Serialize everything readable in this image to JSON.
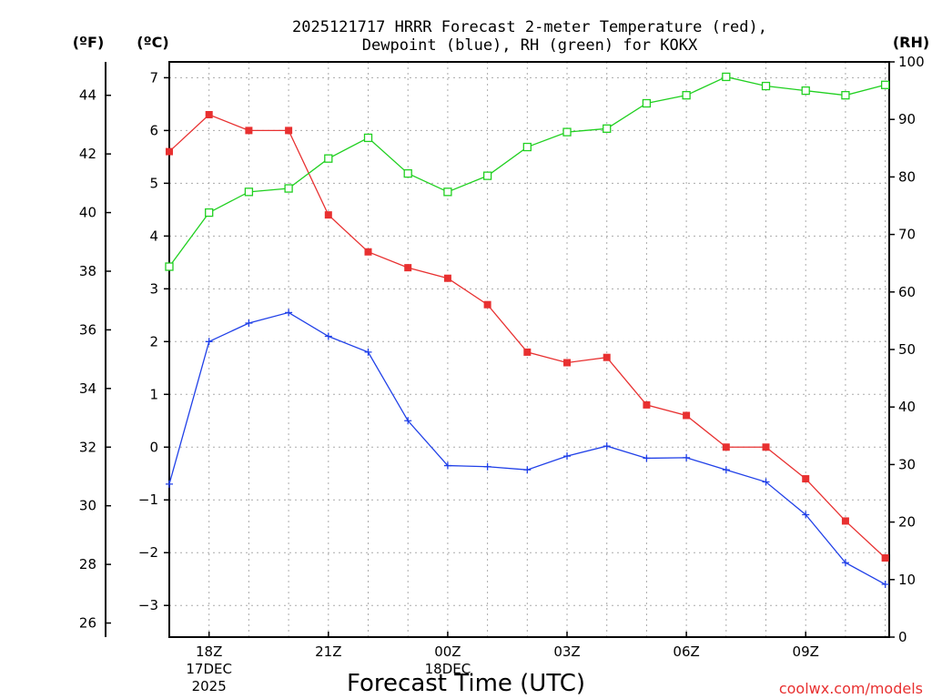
{
  "chart_data": {
    "type": "line",
    "title_line1": "2025121717 HRRR Forecast 2-meter Temperature (red),",
    "title_line2": "Dewpoint (blue), RH (green) for KOKX",
    "xlabel": "Forecast Time (UTC)",
    "watermark": "coolwx.com/models",
    "axis_units": {
      "fahrenheit": "(ºF)",
      "celsius": "(ºC)",
      "rh": "(RH)"
    },
    "x_hours": [
      17,
      18,
      19,
      20,
      21,
      22,
      23,
      24,
      25,
      26,
      27,
      28,
      29,
      30,
      31,
      32,
      33,
      34,
      35
    ],
    "xlim": [
      17,
      35.1
    ],
    "x_ticks": [
      {
        "hour": 18,
        "lines": [
          "18Z",
          "17DEC",
          "2025"
        ]
      },
      {
        "hour": 21,
        "lines": [
          "21Z"
        ]
      },
      {
        "hour": 24,
        "lines": [
          "00Z",
          "18DEC"
        ]
      },
      {
        "hour": 27,
        "lines": [
          "03Z"
        ]
      },
      {
        "hour": 30,
        "lines": [
          "06Z"
        ]
      },
      {
        "hour": 33,
        "lines": [
          "09Z"
        ]
      }
    ],
    "celsius_axis": {
      "ylim": [
        -3.6,
        7.3
      ],
      "ticks": [
        -3,
        -2,
        -1,
        0,
        1,
        2,
        3,
        4,
        5,
        6,
        7
      ],
      "tick_labels": [
        "−3",
        "−2",
        "−1",
        "0",
        "1",
        "2",
        "3",
        "4",
        "5",
        "6",
        "7"
      ]
    },
    "fahrenheit_axis": {
      "ticks": [
        26,
        28,
        30,
        32,
        34,
        36,
        38,
        40,
        42,
        44
      ],
      "tick_labels": [
        "26",
        "28",
        "30",
        "32",
        "34",
        "36",
        "38",
        "40",
        "42",
        "44"
      ]
    },
    "rh_axis": {
      "ylim": [
        0,
        100
      ],
      "ticks": [
        0,
        10,
        20,
        30,
        40,
        50,
        60,
        70,
        80,
        90,
        100
      ],
      "tick_labels": [
        "0",
        "10",
        "20",
        "30",
        "40",
        "50",
        "60",
        "70",
        "80",
        "90",
        "100"
      ]
    },
    "series": [
      {
        "name": "2-meter Temperature",
        "units": "C",
        "color": "#e83030",
        "marker": "filled-square",
        "values": [
          5.6,
          6.3,
          6.0,
          6.0,
          4.4,
          3.7,
          3.4,
          3.2,
          2.7,
          1.8,
          1.6,
          1.7,
          0.8,
          0.6,
          0.0,
          0.0,
          -0.6,
          -1.4,
          -2.1
        ]
      },
      {
        "name": "Dewpoint",
        "units": "C",
        "color": "#2040e8",
        "marker": "plus",
        "values": [
          -0.7,
          2.0,
          2.35,
          2.55,
          2.1,
          1.8,
          0.5,
          -0.35,
          -0.37,
          -0.43,
          -0.17,
          0.02,
          -0.21,
          -0.2,
          -0.43,
          -0.66,
          -1.28,
          -2.19,
          -2.6
        ]
      },
      {
        "name": "Relative Humidity",
        "units": "%",
        "color": "#20d020",
        "marker": "open-square",
        "values": [
          64.4,
          73.8,
          77.4,
          78.0,
          83.2,
          86.8,
          80.6,
          77.4,
          80.2,
          85.2,
          87.8,
          88.4,
          92.8,
          94.2,
          97.4,
          95.8,
          95.0,
          94.2,
          96.0
        ]
      }
    ]
  }
}
